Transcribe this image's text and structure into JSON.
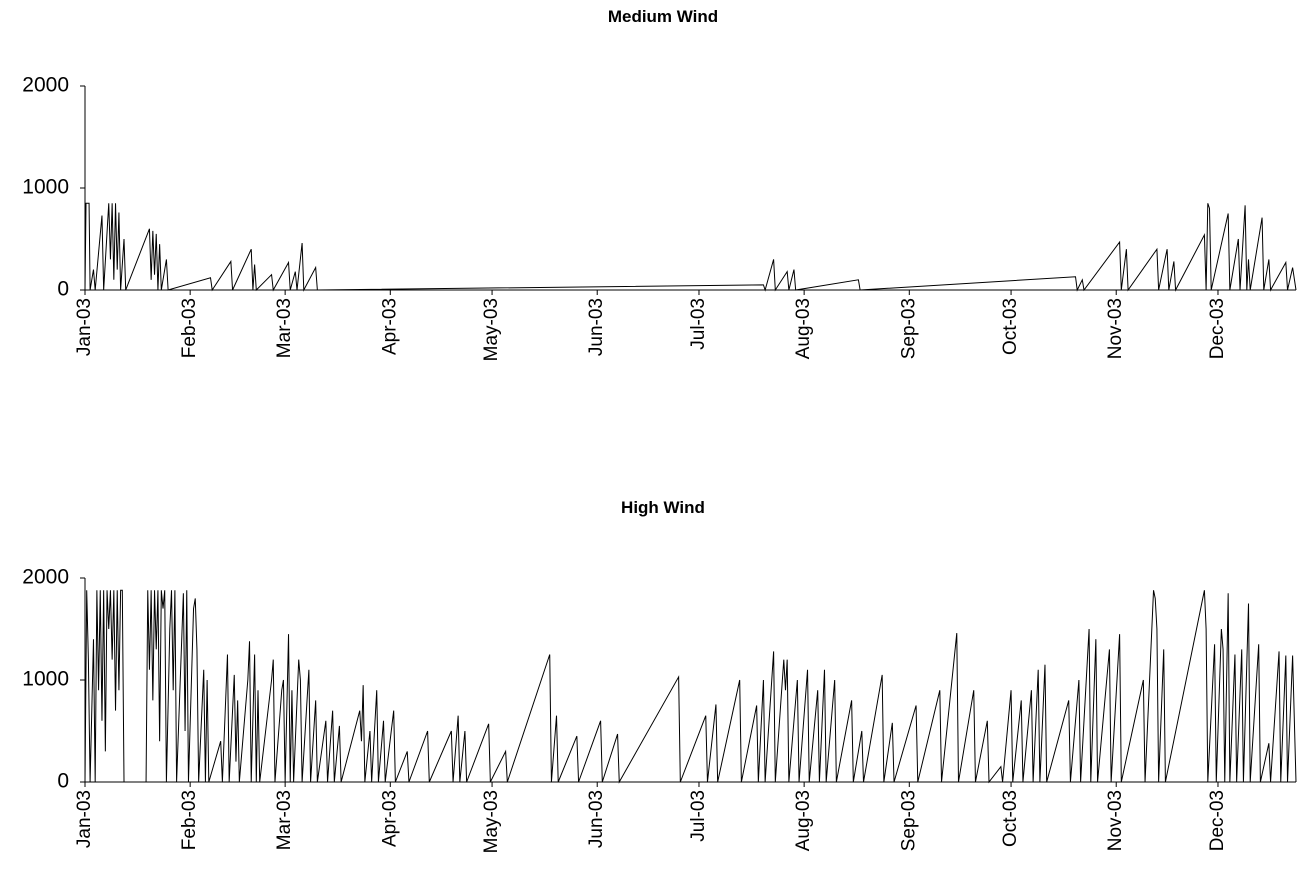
{
  "chart_data": [
    {
      "type": "line",
      "title": "Medium Wind",
      "x": [
        0,
        0.3,
        1.2,
        1.5,
        2.5,
        3,
        5,
        5.5,
        7,
        7.5,
        8,
        8.5,
        9,
        9.5,
        10,
        10.5,
        11.5,
        12,
        19,
        19.5,
        20,
        20.5,
        21,
        21.5,
        22,
        22.5,
        24,
        24.5,
        37,
        37.5,
        43,
        43.5,
        49,
        49.5,
        50,
        50.5,
        55,
        55.5,
        60,
        60.5,
        62,
        62.5,
        64,
        64.5,
        68,
        68.5,
        200,
        200.5,
        203,
        203.5,
        207,
        207.5,
        209,
        209.5,
        228,
        228.5,
        292,
        292.5,
        294,
        294.5,
        305,
        305.5,
        307,
        307.5,
        316,
        316.5,
        319,
        319.5,
        321,
        321.5,
        330,
        330.5,
        331,
        331.5,
        332,
        337,
        337.5,
        340,
        340.5,
        342,
        342.5,
        343,
        343.5,
        347,
        347.5,
        349,
        349.5,
        354,
        354.5,
        356,
        357
      ],
      "values": [
        0,
        850,
        850,
        0,
        200,
        0,
        730,
        0,
        850,
        300,
        850,
        100,
        850,
        200,
        760,
        0,
        500,
        0,
        600,
        100,
        580,
        150,
        550,
        0,
        450,
        0,
        300,
        0,
        120,
        0,
        280,
        0,
        400,
        0,
        250,
        0,
        150,
        0,
        270,
        0,
        180,
        0,
        460,
        0,
        220,
        0,
        50,
        0,
        300,
        0,
        180,
        0,
        200,
        0,
        100,
        0,
        130,
        0,
        100,
        0,
        470,
        0,
        400,
        0,
        400,
        0,
        400,
        0,
        280,
        0,
        540,
        0,
        850,
        800,
        0,
        750,
        0,
        500,
        0,
        830,
        0,
        300,
        0,
        710,
        0,
        300,
        0,
        270,
        0,
        220,
        0
      ],
      "color": "#000000",
      "xlim": [
        0,
        357
      ],
      "xticks": [
        {
          "value": 0,
          "label": "Jan-03"
        },
        {
          "value": 31,
          "label": "Feb-03"
        },
        {
          "value": 59,
          "label": "Mar-03"
        },
        {
          "value": 90,
          "label": "Apr-03"
        },
        {
          "value": 120,
          "label": "May-03"
        },
        {
          "value": 151,
          "label": "Jun-03"
        },
        {
          "value": 181,
          "label": "Jul-03"
        },
        {
          "value": 212,
          "label": "Aug-03"
        },
        {
          "value": 243,
          "label": "Sep-03"
        },
        {
          "value": 273,
          "label": "Oct-03"
        },
        {
          "value": 304,
          "label": "Nov-03"
        },
        {
          "value": 334,
          "label": "Dec-03"
        }
      ],
      "ylim": [
        0,
        2000
      ],
      "yticks": [
        0,
        1000,
        2000
      ],
      "grid": false
    },
    {
      "type": "line",
      "title": "High Wind",
      "x": [
        0,
        0.5,
        1,
        1.5,
        2.5,
        3,
        3.5,
        4,
        4.5,
        5,
        5.5,
        6,
        6.5,
        7,
        7.5,
        8,
        8.5,
        9,
        9.5,
        10,
        10.5,
        11,
        11.5,
        18,
        18.5,
        19,
        19.5,
        20,
        20.5,
        21,
        21.5,
        22,
        22.5,
        23,
        23.5,
        24,
        25,
        25.5,
        26,
        26.5,
        27,
        29,
        29.5,
        30,
        30.5,
        32,
        32.5,
        33,
        33.5,
        35,
        35.5,
        36,
        36.5,
        40,
        40.5,
        42,
        42.5,
        44,
        44.5,
        45,
        45.5,
        48,
        48.5,
        49,
        50,
        50.5,
        51,
        51.5,
        55,
        55.5,
        56,
        58,
        58.5,
        59,
        60,
        60.5,
        61,
        61.5,
        63,
        63.5,
        64,
        66,
        66.5,
        68,
        68.5,
        71,
        71.5,
        73,
        73.5,
        75,
        75.5,
        81,
        81.5,
        82,
        82.5,
        84,
        84.5,
        86,
        86.5,
        88,
        88.5,
        91,
        91.5,
        95,
        95.5,
        101,
        101.5,
        108,
        108.5,
        110,
        110.5,
        112,
        112.5,
        119,
        119.5,
        124,
        124.5,
        137,
        137.5,
        139,
        139.5,
        145,
        145.5,
        152,
        152.5,
        157,
        157.5,
        175,
        175.5,
        183,
        183.5,
        186,
        186.5,
        193,
        193.5,
        198,
        198.5,
        200,
        200.5,
        203,
        203.5,
        206,
        206.5,
        207,
        207.5,
        210,
        210.5,
        213,
        213.5,
        216,
        216.5,
        218,
        218.5,
        221,
        221.5,
        226,
        226.5,
        229,
        229.5,
        235,
        235.5,
        238,
        238.5,
        245,
        245.5,
        252,
        252.5,
        257,
        257.5,
        262,
        262.5,
        266,
        266.5,
        270,
        270.5,
        273,
        273.5,
        276,
        276.5,
        279,
        279.5,
        281,
        281.5,
        283,
        283.5,
        290,
        290.5,
        293,
        293.5,
        296,
        296.5,
        298,
        298.5,
        302,
        302.5,
        305,
        305.5,
        312,
        312.5,
        315,
        315.5,
        316,
        316.5,
        318,
        318.5,
        330,
        330.5,
        331,
        333,
        333.5,
        335,
        335.5,
        336,
        337,
        337.5,
        339,
        339.5,
        341,
        341.5,
        343,
        343.5,
        346,
        346.5,
        349,
        349.5,
        352,
        352.5,
        354,
        354.5,
        356,
        357
      ],
      "values": [
        0,
        1880,
        1200,
        0,
        1400,
        0,
        1880,
        900,
        1880,
        600,
        1880,
        300,
        1880,
        1500,
        1880,
        1200,
        1880,
        700,
        1880,
        900,
        1880,
        1880,
        0,
        0,
        1880,
        1100,
        1880,
        800,
        1880,
        1300,
        1880,
        400,
        1880,
        1700,
        1880,
        0,
        1500,
        1880,
        900,
        1880,
        0,
        1850,
        500,
        1880,
        0,
        1700,
        1800,
        1300,
        0,
        1100,
        0,
        1000,
        0,
        400,
        0,
        1250,
        0,
        1050,
        200,
        800,
        0,
        1000,
        1380,
        0,
        1250,
        0,
        900,
        0,
        1000,
        1200,
        0,
        900,
        1000,
        0,
        1450,
        0,
        900,
        0,
        1200,
        1000,
        0,
        1100,
        0,
        800,
        0,
        600,
        0,
        700,
        0,
        550,
        0,
        700,
        400,
        950,
        0,
        500,
        0,
        900,
        0,
        600,
        0,
        700,
        0,
        300,
        0,
        500,
        0,
        500,
        0,
        650,
        0,
        500,
        0,
        570,
        0,
        300,
        0,
        1250,
        0,
        650,
        0,
        450,
        0,
        600,
        0,
        470,
        0,
        1030,
        0,
        650,
        0,
        760,
        0,
        1000,
        0,
        750,
        0,
        1000,
        0,
        1280,
        0,
        1200,
        900,
        1200,
        0,
        1000,
        0,
        1100,
        0,
        900,
        0,
        1100,
        0,
        1000,
        0,
        800,
        0,
        500,
        0,
        1050,
        0,
        580,
        0,
        750,
        0,
        900,
        0,
        1460,
        0,
        900,
        0,
        600,
        0,
        150,
        0,
        900,
        0,
        800,
        0,
        900,
        0,
        1100,
        0,
        1150,
        0,
        800,
        0,
        1000,
        0,
        1500,
        0,
        1400,
        0,
        1300,
        0,
        1450,
        0,
        1000,
        0,
        1880,
        1800,
        1500,
        0,
        1300,
        0,
        1880,
        1500,
        0,
        1350,
        0,
        1500,
        1300,
        0,
        1850,
        0,
        1250,
        0,
        1300,
        0,
        1750,
        0,
        1350,
        0,
        380,
        0,
        1280,
        0,
        1240,
        0,
        1240,
        0
      ],
      "color": "#000000",
      "xlim": [
        0,
        357
      ],
      "xticks": [
        {
          "value": 0,
          "label": "Jan-03"
        },
        {
          "value": 31,
          "label": "Feb-03"
        },
        {
          "value": 59,
          "label": "Mar-03"
        },
        {
          "value": 90,
          "label": "Apr-03"
        },
        {
          "value": 120,
          "label": "May-03"
        },
        {
          "value": 151,
          "label": "Jun-03"
        },
        {
          "value": 181,
          "label": "Jul-03"
        },
        {
          "value": 212,
          "label": "Aug-03"
        },
        {
          "value": 243,
          "label": "Sep-03"
        },
        {
          "value": 273,
          "label": "Oct-03"
        },
        {
          "value": 304,
          "label": "Nov-03"
        },
        {
          "value": 334,
          "label": "Dec-03"
        }
      ],
      "ylim": [
        0,
        2000
      ],
      "yticks": [
        0,
        1000,
        2000
      ],
      "grid": false
    }
  ]
}
